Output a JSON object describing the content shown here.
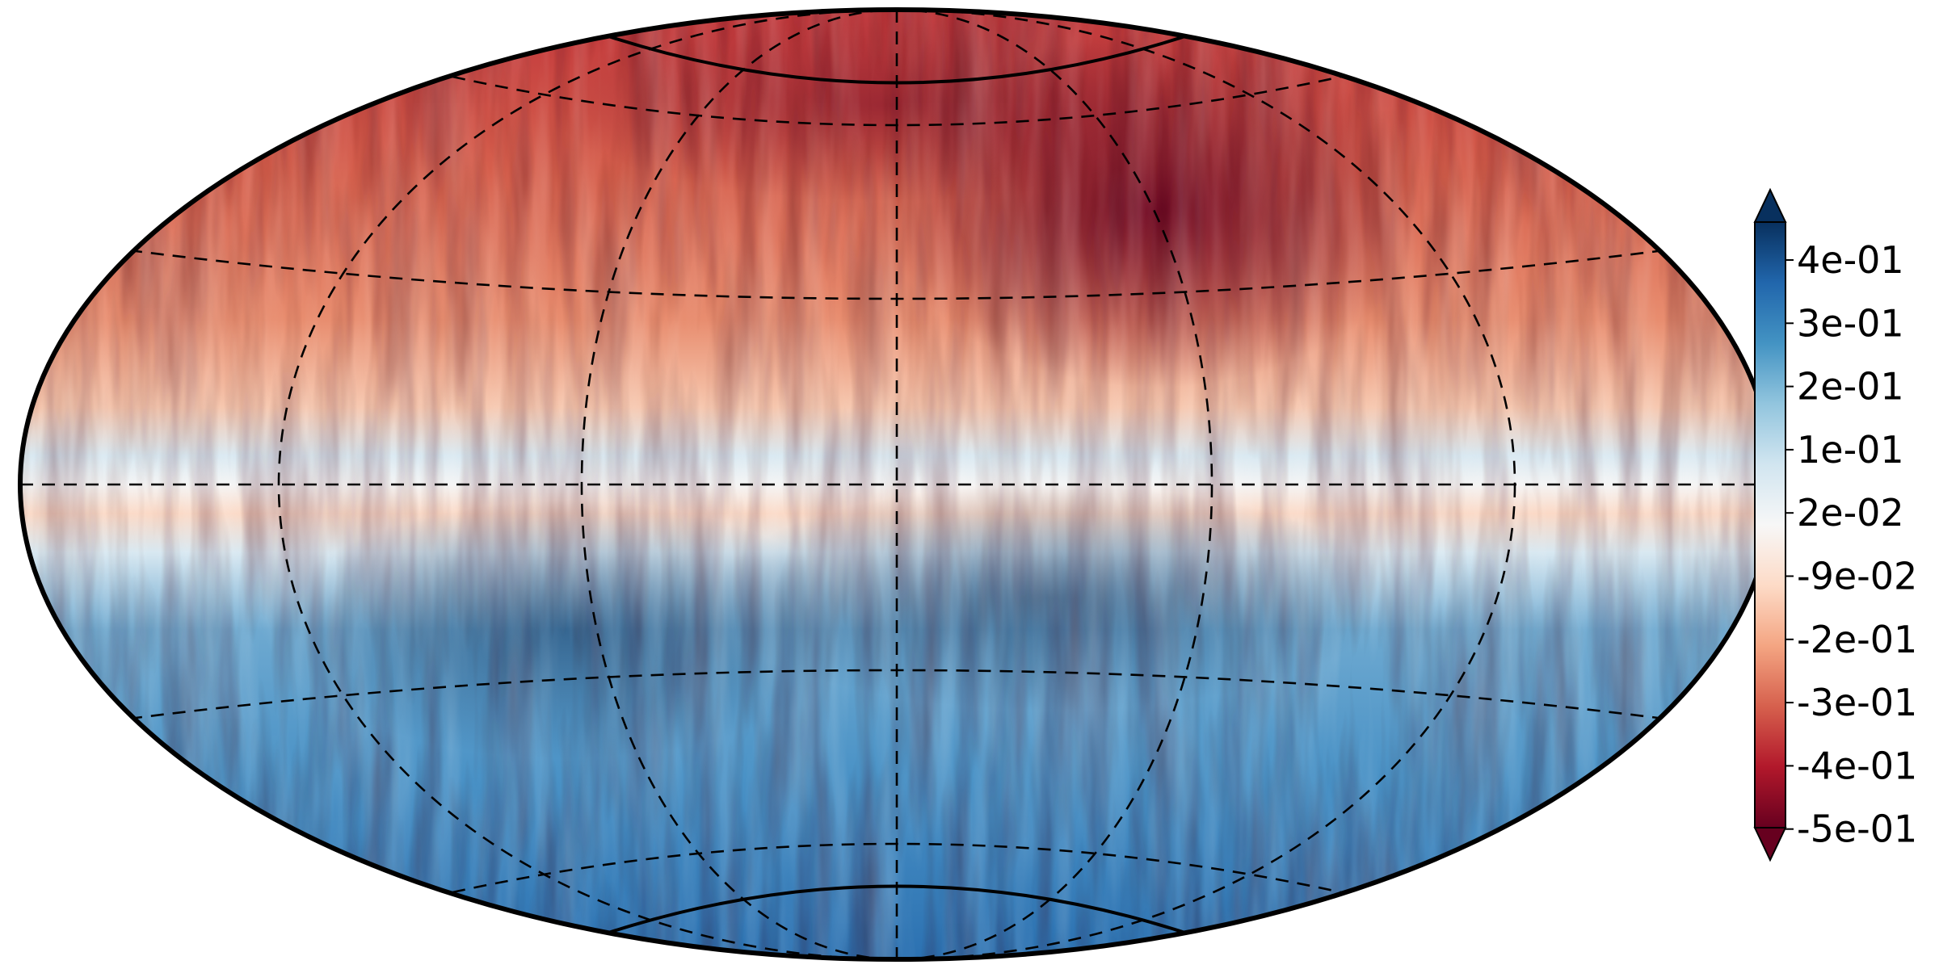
{
  "map": {
    "projection": "hammer",
    "graticule_style": "dashed",
    "field": {
      "northern_hemisphere": "negative (red)",
      "southern_hemisphere": "positive (blue)",
      "equatorial_band": "alternating thin positive/negative stripes"
    }
  },
  "colorbar": {
    "orientation": "vertical",
    "extend": "both",
    "colormap": "RdBu",
    "ticks": [
      "4e-01",
      "3e-01",
      "2e-01",
      "1e-01",
      "2e-02",
      "-9e-02",
      "-2e-01",
      "-3e-01",
      "-4e-01",
      "-5e-01"
    ],
    "colors": {
      "max_extend": "#08305e",
      "min_extend": "#67001f"
    }
  }
}
